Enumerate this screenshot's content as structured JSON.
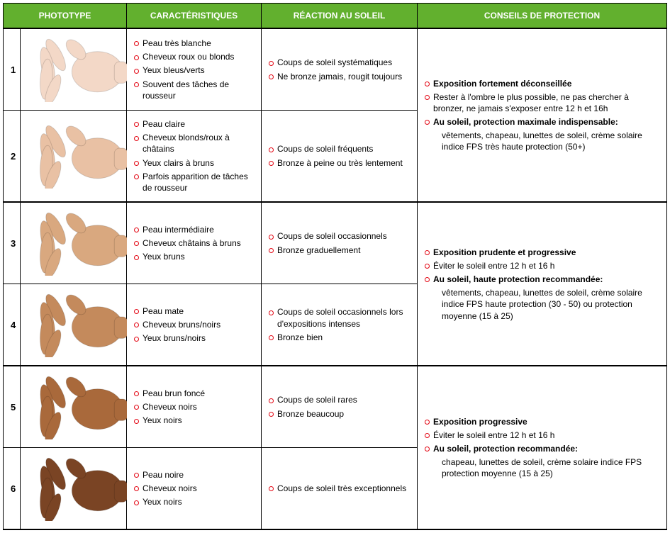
{
  "headers": {
    "phototype": "Phototype",
    "characteristics": "Caractéristiques",
    "reaction": "Réaction au soleil",
    "protection": "Conseils de protection"
  },
  "header_bg": "#62b02e",
  "bullet_color": "#e30613",
  "hand_colors": [
    "#f3d8c7",
    "#e9c1a4",
    "#d9a87f",
    "#c48a5c",
    "#a9693b",
    "#7a4424"
  ],
  "rows": [
    {
      "num": "1",
      "char": [
        "Peau très blanche",
        "Cheveux roux ou blonds",
        "Yeux bleus/verts",
        "Souvent des tâches de rousseur"
      ],
      "react": [
        "Coups de soleil systématiques",
        "Ne bronze jamais, rougit toujours"
      ]
    },
    {
      "num": "2",
      "char": [
        "Peau claire",
        "Cheveux blonds/roux à châtains",
        "Yeux clairs à bruns",
        "Parfois apparition de tâches de rousseur"
      ],
      "react": [
        "Coups de soleil fréquents",
        "Bronze à peine ou très lentement"
      ]
    },
    {
      "num": "3",
      "char": [
        "Peau intermédiaire",
        "Cheveux châtains à bruns",
        "Yeux bruns"
      ],
      "react": [
        "Coups de soleil occasionnels",
        "Bronze graduellement"
      ]
    },
    {
      "num": "4",
      "char": [
        "Peau mate",
        "Cheveux bruns/noirs",
        "Yeux bruns/noirs"
      ],
      "react": [
        "Coups de soleil occasionnels lors d'expositions intenses",
        "Bronze bien"
      ]
    },
    {
      "num": "5",
      "char": [
        "Peau brun foncé",
        "Cheveux noirs",
        "Yeux noirs"
      ],
      "react": [
        "Coups de soleil rares",
        "Bronze beaucoup"
      ]
    },
    {
      "num": "6",
      "char": [
        "Peau noire",
        "Cheveux noirs",
        "Yeux noirs"
      ],
      "react": [
        "Coups de soleil très exceptionnels"
      ]
    }
  ],
  "protection_groups": [
    {
      "rows": [
        0,
        1
      ],
      "items": [
        {
          "bold": true,
          "text": "Exposition fortement déconseillée"
        },
        {
          "bold": false,
          "text": "Rester à l'ombre le plus possible, ne pas chercher à bronzer, ne jamais s'exposer entre 12 h et 16h"
        },
        {
          "bold": true,
          "text": "Au soleil, protection maximale indispensable:",
          "sub": "vêtements, chapeau, lunettes de soleil, crème solaire indice FPS très haute protection (50+)"
        }
      ]
    },
    {
      "rows": [
        2,
        3
      ],
      "items": [
        {
          "bold": true,
          "text": "Exposition prudente et progressive"
        },
        {
          "bold": false,
          "text": "Éviter le soleil entre 12 h et 16 h"
        },
        {
          "bold": true,
          "text": "Au soleil, haute protection recommandée:",
          "sub": "vêtements, chapeau, lunettes de soleil, crème solaire indice FPS haute protection (30 - 50) ou protection moyenne (15 à 25)"
        }
      ]
    },
    {
      "rows": [
        4,
        5
      ],
      "items": [
        {
          "bold": true,
          "text": "Exposition progressive"
        },
        {
          "bold": false,
          "text": "Éviter le soleil entre 12 h et 16 h"
        },
        {
          "bold": true,
          "text": "Au soleil, protection recommandée:",
          "sub": "chapeau, lunettes de soleil, crème solaire indice FPS protection moyenne (15 à 25)"
        }
      ]
    }
  ]
}
